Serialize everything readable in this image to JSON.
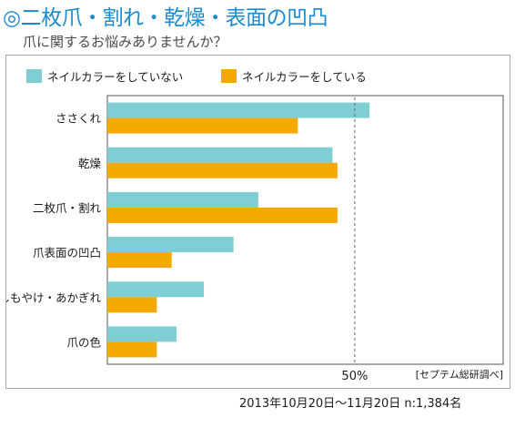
{
  "header": {
    "title": "◎二枚爪・割れ・乾燥・表面の凹凸",
    "subtitle": "爪に関するお悩みありませんか？"
  },
  "footer": {
    "note": "2013年10月20日〜11月20日  n:1,384名"
  },
  "chart_data": {
    "type": "bar",
    "orientation": "horizontal",
    "categories": [
      "ささくれ",
      "乾燥",
      "二枚爪・割れ",
      "爪表面の凹凸",
      "しもやけ・あかぎれ",
      "爪の色"
    ],
    "series": [
      {
        "name": "ネイルカラーをしていない",
        "color": "#7fced3",
        "values": [
          53,
          45.5,
          30.5,
          25.5,
          19.5,
          14
        ]
      },
      {
        "name": "ネイルカラーをしている",
        "color": "#f5a800",
        "values": [
          38.5,
          46.5,
          46.5,
          13,
          10,
          10
        ]
      }
    ],
    "xlim": [
      0,
      80
    ],
    "reference_line": {
      "value": 50,
      "label": "50%"
    },
    "source": "[セプテム総研調べ]",
    "legend_position": "top-left"
  }
}
